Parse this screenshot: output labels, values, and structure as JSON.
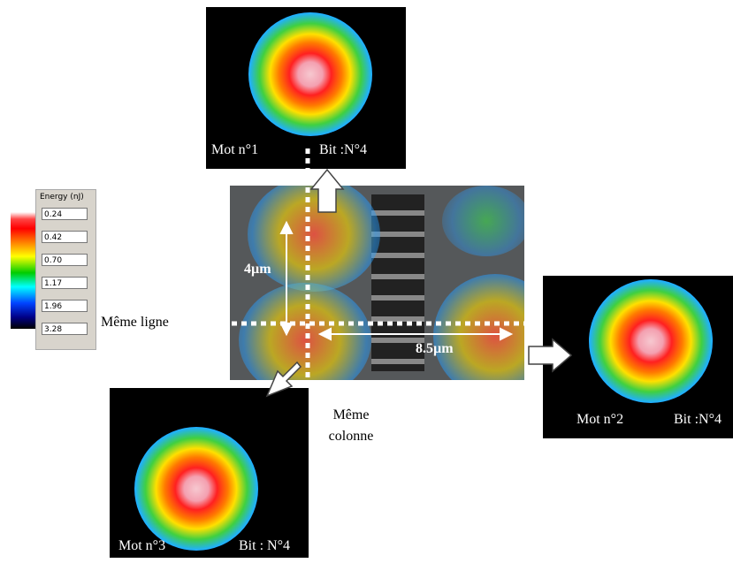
{
  "legend": {
    "title": "Energy (nJ)",
    "levels": [
      "0.24",
      "0.42",
      "0.70",
      "1.17",
      "1.96",
      "3.28"
    ]
  },
  "panels": [
    {
      "word": "Mot  n°1",
      "bit": "Bit :N°4"
    },
    {
      "word": "Mot n°2",
      "bit": "Bit :N°4"
    },
    {
      "word": "Mot  n°3",
      "bit": "Bit : N°4"
    }
  ],
  "center": {
    "vertical_distance": "4µm",
    "horizontal_distance": "8.5µm",
    "same_row": "Même ligne",
    "same_column": "Même colonne"
  }
}
